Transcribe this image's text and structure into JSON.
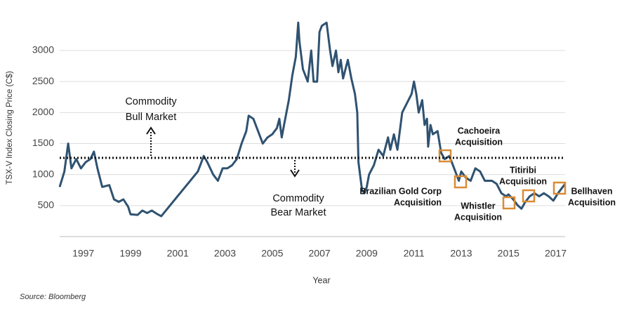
{
  "chart_data": {
    "type": "line",
    "xlabel": "Year",
    "ylabel": "TSX-V Index Closing Price (C$)",
    "source": "Source: Bloomberg",
    "xlim": [
      1996,
      2017.4
    ],
    "xticks": [
      1997,
      1999,
      2001,
      2003,
      2005,
      2007,
      2009,
      2011,
      2013,
      2015,
      2017
    ],
    "ylim": [
      0,
      3600
    ],
    "yticks": [
      500,
      1000,
      1500,
      2000,
      2500,
      3000
    ],
    "grid": true,
    "color": "#2f5271",
    "reference_line": 1270,
    "x": [
      1996.0,
      1996.2,
      1996.36,
      1996.5,
      1996.7,
      1996.9,
      1997.1,
      1997.3,
      1997.45,
      1997.6,
      1997.8,
      1998.1,
      1998.3,
      1998.5,
      1998.7,
      1998.9,
      1999.0,
      1999.3,
      1999.5,
      1999.7,
      1999.9,
      2000.1,
      2000.3,
      2001.85,
      2002.0,
      2002.1,
      2002.25,
      2002.5,
      2002.7,
      2002.9,
      2003.1,
      2003.3,
      2003.5,
      2003.7,
      2003.9,
      2004.0,
      2004.2,
      2004.4,
      2004.6,
      2004.8,
      2005.0,
      2005.2,
      2005.3,
      2005.4,
      2005.5,
      2005.7,
      2005.85,
      2006.0,
      2006.1,
      2006.15,
      2006.3,
      2006.5,
      2006.65,
      2006.75,
      2006.9,
      2007.0,
      2007.1,
      2007.3,
      2007.45,
      2007.55,
      2007.7,
      2007.8,
      2007.9,
      2008.0,
      2008.2,
      2008.35,
      2008.5,
      2008.6,
      2008.65,
      2008.8,
      2008.9,
      2009.0,
      2009.1,
      2009.3,
      2009.5,
      2009.7,
      2009.9,
      2010.0,
      2010.15,
      2010.3,
      2010.5,
      2010.7,
      2010.9,
      2011.0,
      2011.1,
      2011.2,
      2011.35,
      2011.45,
      2011.55,
      2011.6,
      2011.7,
      2011.8,
      2012.0,
      2012.15,
      2012.3,
      2012.5,
      2012.7,
      2012.9,
      2013.0,
      2013.2,
      2013.4,
      2013.6,
      2013.8,
      2014.0,
      2014.3,
      2014.5,
      2014.7,
      2014.9,
      2015.0,
      2015.2,
      2015.4,
      2015.55,
      2015.7,
      2015.9,
      2016.1,
      2016.3,
      2016.5,
      2016.7,
      2016.9,
      2017.1,
      2017.3,
      2017.4
    ],
    "values": [
      800,
      1050,
      1500,
      1100,
      1250,
      1100,
      1200,
      1250,
      1370,
      1100,
      800,
      830,
      600,
      560,
      600,
      480,
      360,
      350,
      420,
      380,
      420,
      370,
      330,
      1050,
      1200,
      1300,
      1200,
      1000,
      900,
      1100,
      1100,
      1150,
      1250,
      1500,
      1700,
      1950,
      1900,
      1700,
      1500,
      1600,
      1650,
      1750,
      1900,
      1600,
      1800,
      2200,
      2600,
      2900,
      3450,
      3150,
      2700,
      2500,
      3000,
      2500,
      2500,
      3300,
      3400,
      3450,
      3000,
      2750,
      3000,
      2650,
      2850,
      2550,
      2850,
      2550,
      2300,
      2000,
      1200,
      750,
      700,
      800,
      1000,
      1150,
      1400,
      1300,
      1600,
      1400,
      1650,
      1400,
      2000,
      2150,
      2300,
      2500,
      2300,
      2000,
      2200,
      1800,
      1900,
      1450,
      1800,
      1650,
      1700,
      1350,
      1250,
      1300,
      1100,
      900,
      1050,
      950,
      900,
      1100,
      1050,
      900,
      900,
      850,
      700,
      650,
      680,
      600,
      500,
      450,
      550,
      650,
      700,
      650,
      700,
      650,
      580,
      700,
      800,
      850
    ],
    "markets": [
      [
        "Commodity",
        "Bull Market"
      ],
      [
        "Commodity",
        "Bear Market"
      ]
    ],
    "annotations": [
      [
        "Cachoeira",
        "Acquisition"
      ],
      [
        "Brazilian Gold Corp",
        "Acquisition"
      ],
      [
        "Whistler",
        "Acquisition"
      ],
      [
        "Titiribi",
        "Acquisition"
      ],
      [
        "Bellhaven",
        "Acquisition"
      ]
    ]
  }
}
